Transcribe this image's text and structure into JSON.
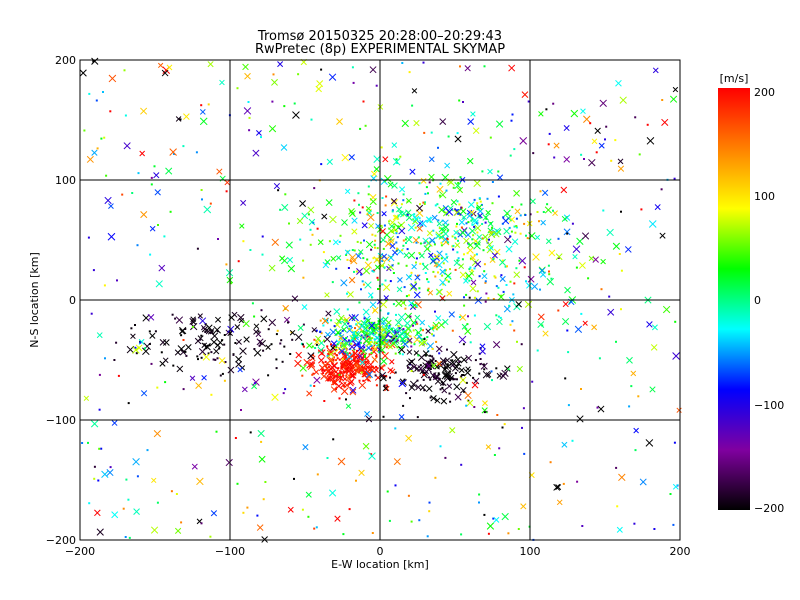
{
  "chart_data": {
    "type": "scatter",
    "title": "Tromsø 20150325 20:28:00–20:29:43",
    "subtitle": "RwPretec (8p) EXPERIMENTAL SKYMAP",
    "xlabel": "E-W location [km]",
    "ylabel": "N-S location [km]",
    "xlim": [
      -200,
      200
    ],
    "ylim": [
      -200,
      200
    ],
    "xticks": [
      "−200",
      "−100",
      "0",
      "100",
      "200"
    ],
    "yticks": [
      "−200",
      "−100",
      "0",
      "100",
      "200"
    ],
    "grid": true,
    "colorbar": {
      "label": "[m/s]",
      "range": [
        -200,
        200
      ],
      "ticks": [
        "200",
        "100",
        "0",
        "−100",
        "−200"
      ],
      "colors": [
        "#000000",
        "#8000a0",
        "#0000ff",
        "#00ffff",
        "#00ff00",
        "#ffff00",
        "#ff8000",
        "#ff0000"
      ]
    },
    "marker_styles": [
      "cross",
      "dot"
    ],
    "clusters": [
      {
        "x": -20,
        "y": -55,
        "sx": 12,
        "sy": 9,
        "v": 190,
        "sv": 15
      },
      {
        "x": -5,
        "y": -30,
        "sx": 18,
        "sy": 8,
        "v": 0,
        "sv": 70
      },
      {
        "x": 40,
        "y": -60,
        "sx": 18,
        "sy": 10,
        "v": -195,
        "sv": 10
      },
      {
        "x": -110,
        "y": -35,
        "sx": 30,
        "sy": 12,
        "v": -195,
        "sv": 10
      },
      {
        "x": 30,
        "y": 30,
        "sx": 45,
        "sy": 30,
        "v": 20,
        "sv": 70
      },
      {
        "x": 50,
        "y": 70,
        "sx": 35,
        "sy": 20,
        "v": 10,
        "sv": 60
      },
      {
        "x": 0,
        "y": 0,
        "sx": 200,
        "sy": 200,
        "v": 0,
        "sv": 120
      }
    ]
  }
}
